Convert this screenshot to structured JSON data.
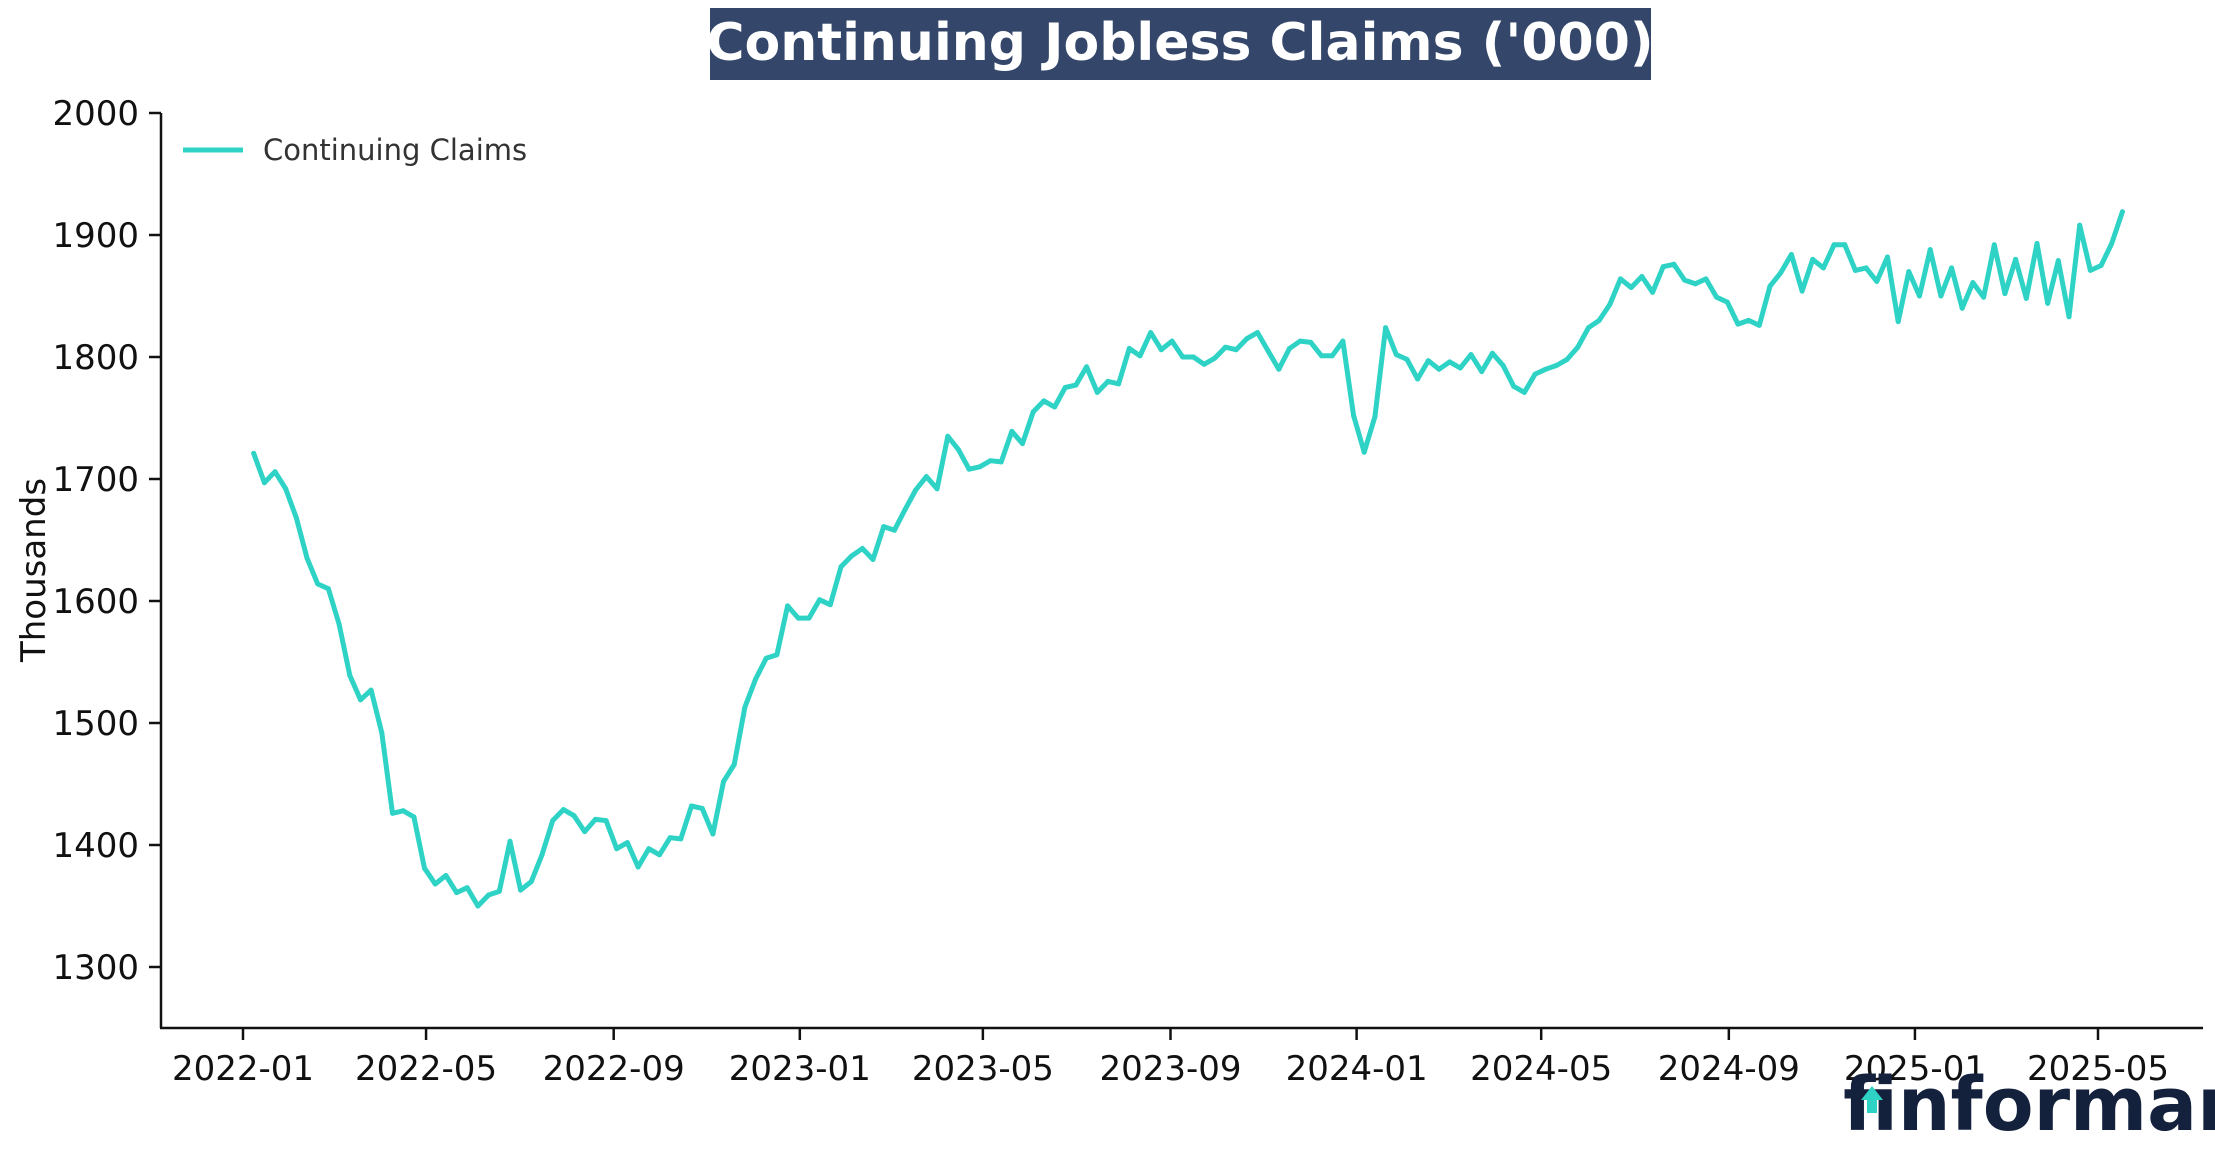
{
  "chart_data": {
    "type": "line",
    "title": "Continuing Jobless Claims ('000)",
    "xlabel": "",
    "ylabel": "Thousands",
    "ylim": [
      1250,
      2000
    ],
    "yticks": [
      1300,
      1400,
      1500,
      1600,
      1700,
      1800,
      1900,
      2000
    ],
    "xticks": [
      "2022-01",
      "2022-05",
      "2022-09",
      "2023-01",
      "2023-05",
      "2023-09",
      "2024-01",
      "2024-05",
      "2024-09",
      "2025-01",
      "2025-05"
    ],
    "legend_position": "top-left",
    "grid": false,
    "colors": {
      "line": "#2ed3c6",
      "title_bg": "#34466a",
      "logo": "#14213d",
      "logo_accent": "#2ed3c6"
    },
    "series": [
      {
        "name": "Continuing Claims",
        "start": "2022-01-08",
        "interval_days": 7,
        "values": [
          1721,
          1697,
          1706,
          1692,
          1668,
          1635,
          1614,
          1610,
          1581,
          1539,
          1519,
          1527,
          1492,
          1426,
          1428,
          1423,
          1381,
          1368,
          1375,
          1361,
          1365,
          1350,
          1359,
          1362,
          1403,
          1363,
          1370,
          1392,
          1420,
          1429,
          1424,
          1411,
          1421,
          1420,
          1397,
          1402,
          1382,
          1397,
          1392,
          1406,
          1405,
          1432,
          1430,
          1409,
          1452,
          1466,
          1513,
          1536,
          1553,
          1556,
          1596,
          1586,
          1586,
          1601,
          1597,
          1628,
          1637,
          1643,
          1634,
          1661,
          1658,
          1675,
          1691,
          1702,
          1692,
          1735,
          1724,
          1708,
          1710,
          1715,
          1714,
          1739,
          1729,
          1755,
          1764,
          1759,
          1775,
          1777,
          1792,
          1771,
          1780,
          1778,
          1807,
          1801,
          1820,
          1806,
          1813,
          1800,
          1800,
          1794,
          1799,
          1808,
          1806,
          1815,
          1820,
          1805,
          1790,
          1807,
          1813,
          1812,
          1801,
          1801,
          1813,
          1752,
          1722,
          1751,
          1824,
          1802,
          1798,
          1782,
          1797,
          1790,
          1796,
          1791,
          1802,
          1788,
          1803,
          1793,
          1776,
          1771,
          1786,
          1790,
          1793,
          1798,
          1808,
          1824,
          1830,
          1843,
          1864,
          1857,
          1866,
          1853,
          1874,
          1876,
          1863,
          1860,
          1864,
          1849,
          1845,
          1827,
          1830,
          1826,
          1858,
          1869,
          1884,
          1854,
          1880,
          1873,
          1892,
          1892,
          1871,
          1873,
          1862,
          1882,
          1829,
          1870,
          1850,
          1888,
          1850,
          1873,
          1840,
          1861,
          1849,
          1892,
          1852,
          1880,
          1848,
          1893,
          1844,
          1879,
          1833,
          1908,
          1871,
          1875,
          1893,
          1919
        ]
      }
    ]
  },
  "logo": {
    "text": "finformant"
  }
}
